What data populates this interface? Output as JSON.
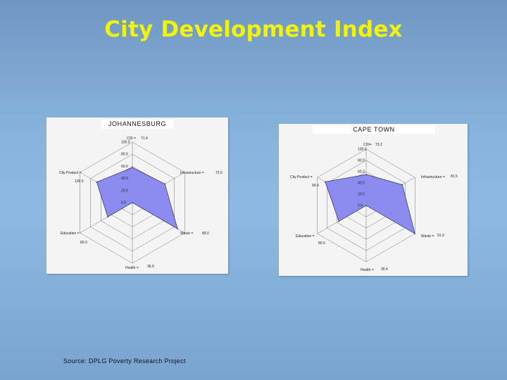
{
  "title": "City Development Index",
  "source": "Source: DPLG Poverty Research Project",
  "colors": {
    "title": "#f2f20a",
    "fill": "#8c8cf0",
    "stroke": "#2a2a6a",
    "grid": "#555555"
  },
  "chart_data": [
    {
      "type": "radar",
      "title": "JOHANNESBURG",
      "rlim": [
        0,
        100
      ],
      "rticks": [
        "100.0",
        "80.0",
        "60.0",
        "40.0",
        "20.0",
        "0.0"
      ],
      "axes": [
        {
          "label": "CDI =",
          "value_label": "71.4",
          "value": 71.4
        },
        {
          "label": "Infrastructure =",
          "value_label": "72.0",
          "value": 72.0
        },
        {
          "label": "Waste =",
          "value_label": "89.0",
          "value": 89.0
        },
        {
          "label": "Health =",
          "value_label": "36.9",
          "value": 36.9
        },
        {
          "label": "Education =",
          "value_label": "80.0",
          "value": 80.0
        },
        {
          "label": "City Product =",
          "value_label": "100.0",
          "value": 100.0
        }
      ],
      "polygon": [
        {
          "axis": "CDI",
          "value": 58
        },
        {
          "axis": "Infrastructure",
          "value": 62
        },
        {
          "axis": "Waste",
          "value": 86
        },
        {
          "axis": "Health",
          "value": 0
        },
        {
          "axis": "Education",
          "value": 47
        },
        {
          "axis": "City Product",
          "value": 68
        }
      ]
    },
    {
      "type": "radar",
      "title": "CAPE TOWN",
      "rlim": [
        0,
        100
      ],
      "rticks": [
        "100.0",
        "80.0",
        "60.0",
        "40.0",
        "20.0",
        "0.0"
      ],
      "axes": [
        {
          "label": "CDI=",
          "value_label": "73.2",
          "value": 73.2
        },
        {
          "label": "Infrastructure =",
          "value_label": "81.5",
          "value": 81.5
        },
        {
          "label": "Waste =",
          "value_label": "91.0",
          "value": 91.0
        },
        {
          "label": "Health =",
          "value_label": "35.4",
          "value": 35.4
        },
        {
          "label": "Education =",
          "value_label": "80.0",
          "value": 80.0
        },
        {
          "label": "City Product =",
          "value_label": "99.4",
          "value": 99.4
        }
      ],
      "polygon": [
        {
          "axis": "CDI",
          "value": 55
        },
        {
          "axis": "Infrastructure",
          "value": 74
        },
        {
          "axis": "Waste",
          "value": 100
        },
        {
          "axis": "Health",
          "value": 0
        },
        {
          "axis": "Education",
          "value": 56
        },
        {
          "axis": "City Product",
          "value": 84
        }
      ]
    }
  ]
}
